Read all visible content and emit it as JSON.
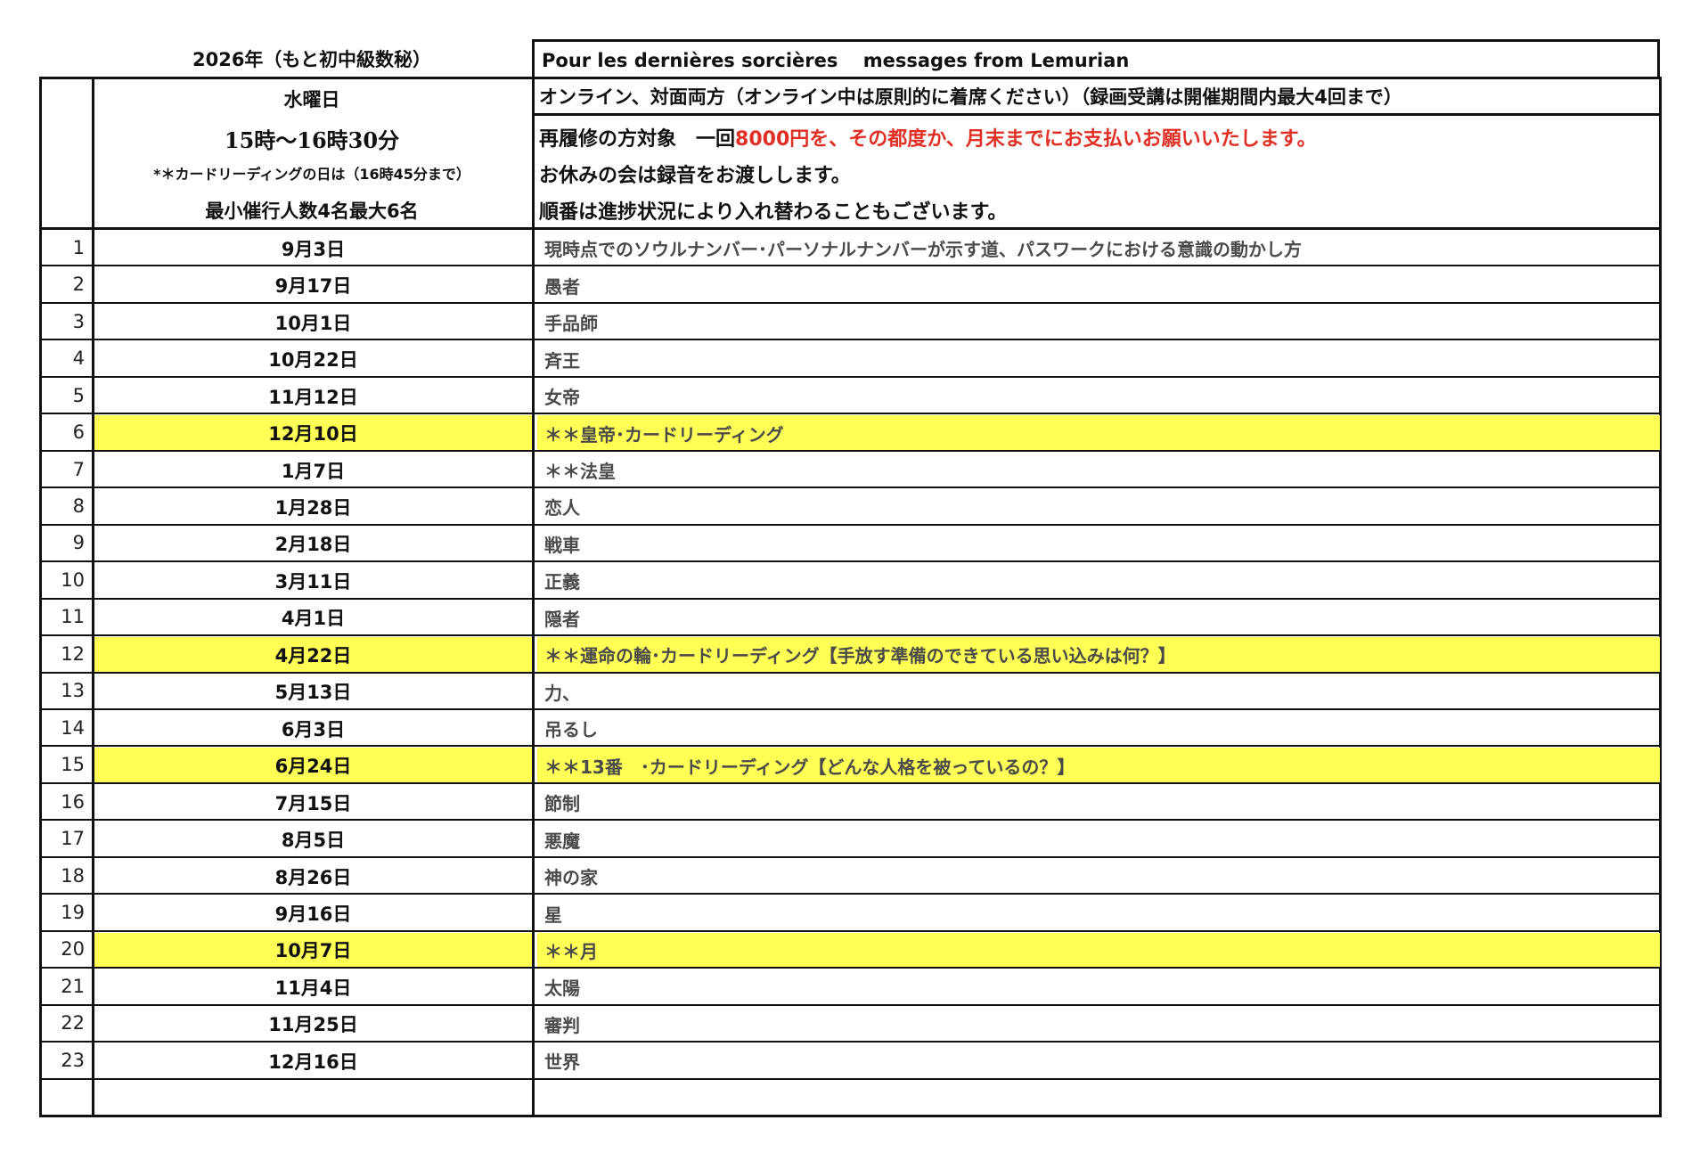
{
  "title_left": "2026年（もと初中級数秘）",
  "title_right": "Pour les dernières sorcières　 messages from Lemurian",
  "header_left": {
    "day": "水曜日",
    "time": "15時〜16時30分",
    "note": "*＊カードリーディングの日は（16時45分まで）",
    "capacity": "最小催行人数4名最大6名"
  },
  "header_right": {
    "format": "オンライン、対面両方（オンライン中は原則的に着席ください）（録画受講は開催期間内最大4回まで）",
    "fee_prefix": "再履修の方対象　一回",
    "fee_red": "8000円を、その都度か、月末までにお支払いお願いいたします。",
    "absence": "お休みの会は録音をお渡しします。",
    "order": "順番は進捗状況により入れ替わることもございます。"
  },
  "colors": {
    "highlight": "#ffff55",
    "fee_text": "#e03025"
  },
  "rows": [
    {
      "num": "1",
      "date": "9月3日",
      "topic": "現時点でのソウルナンバー･パーソナルナンバーが示す道、パスワークにおける意識の動かし方",
      "highlight": false
    },
    {
      "num": "2",
      "date": "9月17日",
      "topic": "愚者",
      "highlight": false
    },
    {
      "num": "3",
      "date": "10月1日",
      "topic": "手品師",
      "highlight": false
    },
    {
      "num": "4",
      "date": "10月22日",
      "topic": "斉王",
      "highlight": false
    },
    {
      "num": "5",
      "date": "11月12日",
      "topic": "女帝",
      "highlight": false
    },
    {
      "num": "6",
      "date": "12月10日",
      "topic": "＊＊皇帝･カードリーディング",
      "highlight": true
    },
    {
      "num": "7",
      "date": "1月7日",
      "topic": "＊＊法皇",
      "highlight": false
    },
    {
      "num": "8",
      "date": "1月28日",
      "topic": " 恋人",
      "highlight": false
    },
    {
      "num": "9",
      "date": "2月18日",
      "topic": "戦車",
      "highlight": false
    },
    {
      "num": "10",
      "date": "3月11日",
      "topic": "正義",
      "highlight": false
    },
    {
      "num": "11",
      "date": "4月1日",
      "topic": "隠者",
      "highlight": false
    },
    {
      "num": "12",
      "date": "4月22日",
      "topic": "＊＊運命の輪･カードリーディング【手放す準備のできている思い込みは何？】",
      "highlight": true
    },
    {
      "num": "13",
      "date": "5月13日",
      "topic": "力、",
      "highlight": false
    },
    {
      "num": "14",
      "date": "6月3日",
      "topic": "吊るし",
      "highlight": false
    },
    {
      "num": "15",
      "date": "6月24日",
      "topic": "＊＊13番　･カードリーディング【どんな人格を被っているの？】",
      "highlight": true
    },
    {
      "num": "16",
      "date": "7月15日",
      "topic": "節制",
      "highlight": false
    },
    {
      "num": "17",
      "date": "8月5日",
      "topic": "悪魔",
      "highlight": false
    },
    {
      "num": "18",
      "date": "8月26日",
      "topic": "神の家",
      "highlight": false
    },
    {
      "num": "19",
      "date": "9月16日",
      "topic": "星",
      "highlight": false
    },
    {
      "num": "20",
      "date": "10月7日",
      "topic": "＊＊月",
      "highlight": true
    },
    {
      "num": "21",
      "date": "11月4日",
      "topic": "太陽",
      "highlight": false
    },
    {
      "num": "22",
      "date": "11月25日",
      "topic": "審判",
      "highlight": false
    },
    {
      "num": "23",
      "date": "12月16日",
      "topic": "世界",
      "highlight": false
    },
    {
      "num": "",
      "date": "",
      "topic": "",
      "highlight": false
    }
  ]
}
